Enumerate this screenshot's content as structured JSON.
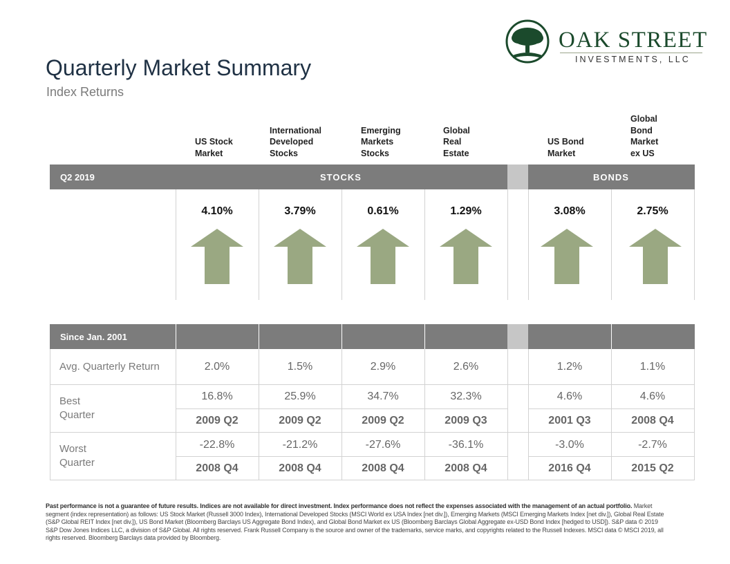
{
  "logo": {
    "name": "OAK STREET",
    "sub": "INVESTMENTS, LLC",
    "icon": "oak-tree-icon",
    "color": "#1b4a2c"
  },
  "title": "Quarterly Market Summary",
  "subtitle": "Index Returns",
  "columns": [
    "US Stock\nMarket",
    "International\nDeveloped\nStocks",
    "Emerging\nMarkets\nStocks",
    "Global\nReal\nEstate",
    "US Bond\nMarket",
    "Global\nBond\nMarket\nex US"
  ],
  "quarter": {
    "label": "Q2 2019",
    "stocks_label": "STOCKS",
    "bonds_label": "BONDS",
    "returns": [
      "4.10%",
      "3.79%",
      "0.61%",
      "1.29%",
      "3.08%",
      "2.75%"
    ],
    "direction": [
      "up",
      "up",
      "up",
      "up",
      "up",
      "up"
    ],
    "arrow_color": "#9aa882"
  },
  "since": {
    "label": "Since Jan. 2001",
    "avg_label": "Avg. Quarterly Return",
    "avg": [
      "2.0%",
      "1.5%",
      "2.9%",
      "2.6%",
      "1.2%",
      "1.1%"
    ],
    "best_label": "Best\nQuarter",
    "best": [
      "16.8%",
      "25.9%",
      "34.7%",
      "32.3%",
      "4.6%",
      "4.6%"
    ],
    "best_q": [
      "2009 Q2",
      "2009 Q2",
      "2009 Q2",
      "2009 Q3",
      "2001 Q3",
      "2008 Q4"
    ],
    "worst_label": "Worst\nQuarter",
    "worst": [
      "-22.8%",
      "-21.2%",
      "-27.6%",
      "-36.1%",
      "-3.0%",
      "-2.7%"
    ],
    "worst_q": [
      "2008 Q4",
      "2008 Q4",
      "2008 Q4",
      "2008 Q4",
      "2016 Q4",
      "2015 Q2"
    ]
  },
  "footnote": {
    "bold": "Past performance is not a guarantee of future results. Indices are not available for direct investment. Index performance does not reflect the expenses associated with the management of an actual portfolio.",
    "text": "Market segment (index representation) as follows: US Stock Market (Russell 3000 Index), International Developed Stocks (MSCI World ex USA Index [net div.]), Emerging Markets (MSCI Emerging Markets Index [net div.]), Global Real Estate (S&P Global REIT Index [net div.]), US Bond Market (Bloomberg Barclays US Aggregate Bond Index), and Global Bond Market ex US (Bloomberg Barclays Global Aggregate ex-USD Bond Index [hedged to USD]). S&P data © 2019 S&P Dow Jones Indices LLC, a division of S&P Global. All rights reserved. Frank Russell Company is the source and owner of the trademarks, service marks, and copyrights related to the Russell Indexes. MSCI data © MSCI 2019, all rights reserved. Bloomberg Barclays data provided by Bloomberg."
  }
}
